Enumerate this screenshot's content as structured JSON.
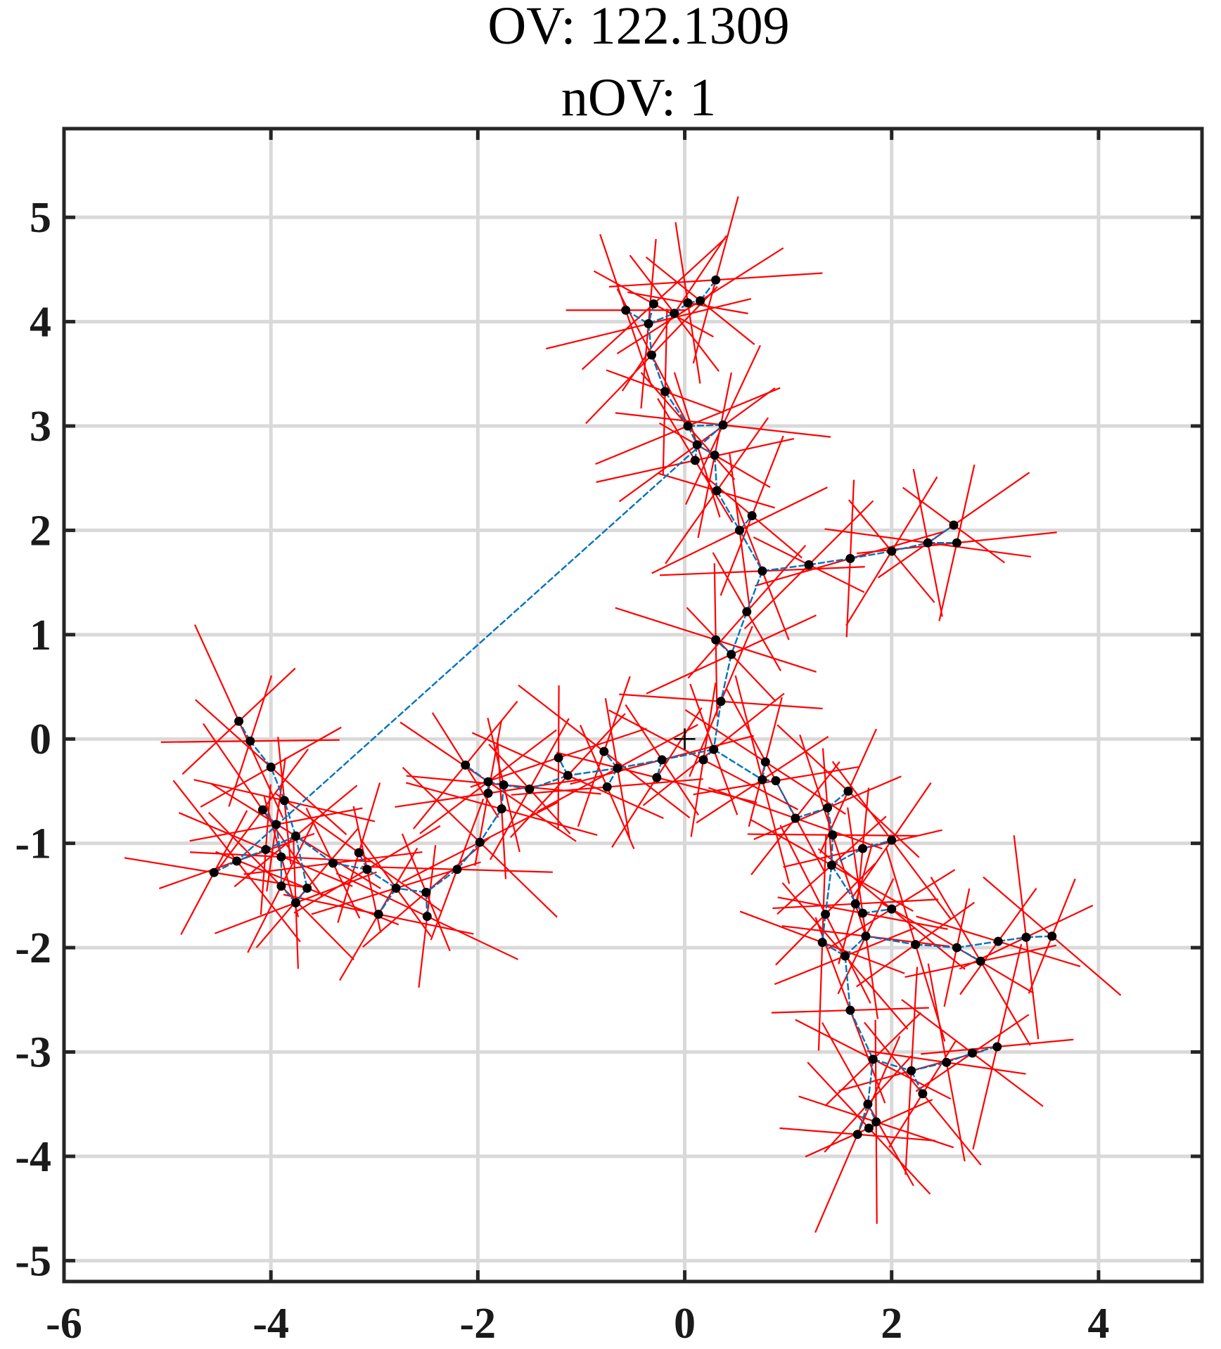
{
  "chart_data": {
    "type": "scatter",
    "title": "OV: 122.1309",
    "subtitle": "nOV: 1",
    "xlim": [
      -6,
      5
    ],
    "ylim": [
      -5.2,
      5.85
    ],
    "xticks": [
      -6,
      -4,
      -2,
      0,
      2,
      4
    ],
    "yticks": [
      -5,
      -4,
      -3,
      -2,
      -1,
      0,
      1,
      2,
      3,
      4,
      5
    ],
    "xtick_labels": [
      "-6",
      "-4",
      "-2",
      "0",
      "2",
      "4"
    ],
    "ytick_labels": [
      "-5",
      "-4",
      "-3",
      "-2",
      "-1",
      "0",
      "1",
      "2",
      "3",
      "4",
      "5"
    ],
    "grid": true,
    "origin_marker": "+",
    "colors": {
      "points": "#000000",
      "edges": "#0072BD",
      "strokes": "#FF0000",
      "grid": "#D9D9D9",
      "axes": "#262626"
    },
    "points": [
      [
        -0.57,
        4.11
      ],
      [
        -0.3,
        4.17
      ],
      [
        -0.35,
        3.98
      ],
      [
        -0.1,
        4.08
      ],
      [
        0.03,
        4.18
      ],
      [
        0.15,
        4.2
      ],
      [
        0.3,
        4.4
      ],
      [
        -0.32,
        3.68
      ],
      [
        -0.19,
        3.33
      ],
      [
        0.03,
        3.0
      ],
      [
        0.37,
        3.01
      ],
      [
        0.12,
        2.82
      ],
      [
        0.29,
        2.72
      ],
      [
        0.1,
        2.67
      ],
      [
        0.31,
        2.38
      ],
      [
        0.53,
        2.0
      ],
      [
        0.65,
        2.14
      ],
      [
        0.75,
        1.61
      ],
      [
        1.2,
        1.67
      ],
      [
        1.6,
        1.73
      ],
      [
        2.0,
        1.8
      ],
      [
        2.35,
        1.88
      ],
      [
        2.6,
        2.05
      ],
      [
        2.63,
        1.88
      ],
      [
        0.6,
        1.22
      ],
      [
        0.3,
        0.95
      ],
      [
        0.45,
        0.81
      ],
      [
        0.35,
        0.36
      ],
      [
        0.28,
        -0.1
      ],
      [
        0.18,
        -0.2
      ],
      [
        -0.22,
        -0.2
      ],
      [
        -0.27,
        -0.37
      ],
      [
        -0.65,
        -0.28
      ],
      [
        -0.78,
        -0.12
      ],
      [
        -0.75,
        -0.46
      ],
      [
        -1.13,
        -0.35
      ],
      [
        -1.22,
        -0.18
      ],
      [
        -1.5,
        -0.48
      ],
      [
        -1.75,
        -0.44
      ],
      [
        -1.9,
        -0.41
      ],
      [
        -1.9,
        -0.52
      ],
      [
        -2.12,
        -0.25
      ],
      [
        -1.77,
        -0.67
      ],
      [
        -1.98,
        -0.99
      ],
      [
        -2.2,
        -1.25
      ],
      [
        -2.5,
        -1.47
      ],
      [
        -2.49,
        -1.7
      ],
      [
        -2.79,
        -1.43
      ],
      [
        -2.96,
        -1.68
      ],
      [
        -3.07,
        -1.25
      ],
      [
        -3.15,
        -1.09
      ],
      [
        -3.4,
        -1.19
      ],
      [
        -3.65,
        -1.43
      ],
      [
        -3.76,
        -1.57
      ],
      [
        -3.9,
        -1.41
      ],
      [
        -3.9,
        -1.13
      ],
      [
        -3.76,
        -0.93
      ],
      [
        -3.95,
        -0.82
      ],
      [
        -4.08,
        -0.68
      ],
      [
        -3.87,
        -0.59
      ],
      [
        -4.0,
        -0.27
      ],
      [
        -4.2,
        -0.02
      ],
      [
        -4.31,
        0.17
      ],
      [
        -4.05,
        -1.06
      ],
      [
        -4.33,
        -1.17
      ],
      [
        -4.55,
        -1.28
      ],
      [
        0.75,
        -0.39
      ],
      [
        0.78,
        -0.22
      ],
      [
        0.88,
        -0.4
      ],
      [
        1.07,
        -0.76
      ],
      [
        1.38,
        -0.66
      ],
      [
        1.58,
        -0.5
      ],
      [
        1.43,
        -0.92
      ],
      [
        1.42,
        -1.21
      ],
      [
        1.72,
        -1.05
      ],
      [
        2.0,
        -0.97
      ],
      [
        1.72,
        -1.67
      ],
      [
        2.0,
        -1.63
      ],
      [
        1.65,
        -1.58
      ],
      [
        1.36,
        -1.68
      ],
      [
        1.33,
        -1.95
      ],
      [
        1.55,
        -2.08
      ],
      [
        1.75,
        -1.89
      ],
      [
        2.23,
        -1.97
      ],
      [
        2.63,
        -2.0
      ],
      [
        2.86,
        -2.13
      ],
      [
        3.03,
        -1.94
      ],
      [
        3.3,
        -1.9
      ],
      [
        3.55,
        -1.89
      ],
      [
        1.6,
        -2.6
      ],
      [
        1.82,
        -3.07
      ],
      [
        2.19,
        -3.18
      ],
      [
        2.3,
        -3.4
      ],
      [
        2.53,
        -3.1
      ],
      [
        2.78,
        -3.01
      ],
      [
        3.02,
        -2.95
      ],
      [
        1.77,
        -3.5
      ],
      [
        1.85,
        -3.67
      ],
      [
        1.78,
        -3.73
      ],
      [
        1.67,
        -3.79
      ]
    ],
    "edges": [
      [
        0,
        2
      ],
      [
        1,
        2
      ],
      [
        2,
        3
      ],
      [
        3,
        4
      ],
      [
        4,
        5
      ],
      [
        5,
        6
      ],
      [
        2,
        7
      ],
      [
        7,
        8
      ],
      [
        8,
        9
      ],
      [
        9,
        10
      ],
      [
        9,
        11
      ],
      [
        11,
        12
      ],
      [
        11,
        13
      ],
      [
        12,
        14
      ],
      [
        14,
        15
      ],
      [
        15,
        16
      ],
      [
        15,
        17
      ],
      [
        17,
        18
      ],
      [
        18,
        19
      ],
      [
        19,
        20
      ],
      [
        20,
        21
      ],
      [
        21,
        22
      ],
      [
        21,
        23
      ],
      [
        17,
        24
      ],
      [
        24,
        26
      ],
      [
        26,
        25
      ],
      [
        26,
        27
      ],
      [
        27,
        28
      ],
      [
        28,
        29
      ],
      [
        28,
        30
      ],
      [
        30,
        31
      ],
      [
        30,
        32
      ],
      [
        32,
        33
      ],
      [
        32,
        34
      ],
      [
        32,
        35
      ],
      [
        35,
        36
      ],
      [
        35,
        37
      ],
      [
        37,
        38
      ],
      [
        38,
        39
      ],
      [
        39,
        40
      ],
      [
        39,
        41
      ],
      [
        38,
        42
      ],
      [
        42,
        43
      ],
      [
        43,
        44
      ],
      [
        44,
        45
      ],
      [
        45,
        46
      ],
      [
        45,
        47
      ],
      [
        47,
        48
      ],
      [
        47,
        49
      ],
      [
        49,
        50
      ],
      [
        49,
        51
      ],
      [
        51,
        56
      ],
      [
        56,
        52
      ],
      [
        52,
        53
      ],
      [
        53,
        54
      ],
      [
        54,
        55
      ],
      [
        55,
        57
      ],
      [
        56,
        59
      ],
      [
        59,
        60
      ],
      [
        60,
        61
      ],
      [
        61,
        62
      ],
      [
        57,
        58
      ],
      [
        56,
        63
      ],
      [
        63,
        64
      ],
      [
        64,
        65
      ],
      [
        28,
        66
      ],
      [
        66,
        67
      ],
      [
        66,
        68
      ],
      [
        68,
        69
      ],
      [
        69,
        70
      ],
      [
        70,
        71
      ],
      [
        70,
        72
      ],
      [
        72,
        73
      ],
      [
        73,
        74
      ],
      [
        74,
        75
      ],
      [
        73,
        76
      ],
      [
        76,
        77
      ],
      [
        76,
        78
      ],
      [
        73,
        79
      ],
      [
        79,
        80
      ],
      [
        80,
        81
      ],
      [
        81,
        82
      ],
      [
        82,
        83
      ],
      [
        83,
        84
      ],
      [
        84,
        85
      ],
      [
        84,
        86
      ],
      [
        86,
        87
      ],
      [
        87,
        88
      ],
      [
        81,
        89
      ],
      [
        89,
        90
      ],
      [
        90,
        91
      ],
      [
        91,
        92
      ],
      [
        91,
        93
      ],
      [
        93,
        94
      ],
      [
        94,
        95
      ],
      [
        90,
        96
      ],
      [
        96,
        97
      ],
      [
        97,
        98
      ],
      [
        96,
        99
      ],
      [
        10,
        64
      ]
    ]
  }
}
